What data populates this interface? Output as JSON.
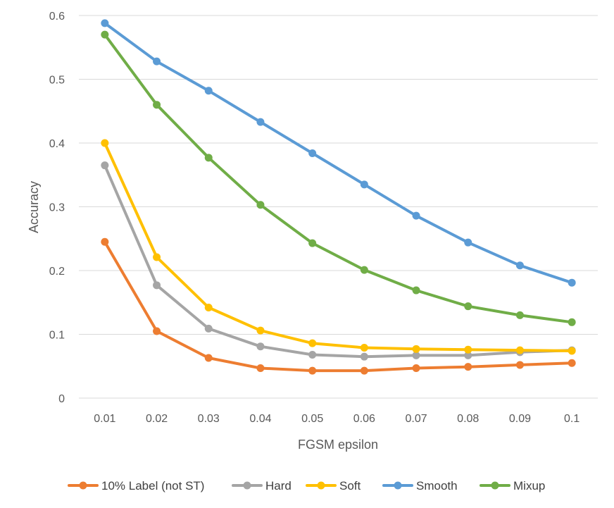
{
  "chart_data": {
    "type": "line",
    "xlabel": "FGSM epsilon",
    "ylabel": "Accuracy",
    "categories": [
      "0.01",
      "0.02",
      "0.03",
      "0.04",
      "0.05",
      "0.06",
      "0.07",
      "0.08",
      "0.09",
      "0.1"
    ],
    "ylim": [
      0,
      0.6
    ],
    "yticks": [
      0,
      0.1,
      0.2,
      0.3,
      0.4,
      0.5,
      0.6
    ],
    "ytick_labels": [
      "0",
      "0.1",
      "0.2",
      "0.3",
      "0.4",
      "0.5",
      "0.6"
    ],
    "grid": true,
    "legend_position": "bottom",
    "series": [
      {
        "name": "10% Label (not ST)",
        "color": "#ED7D31",
        "values": [
          0.245,
          0.105,
          0.063,
          0.047,
          0.043,
          0.043,
          0.047,
          0.049,
          0.052,
          0.055
        ]
      },
      {
        "name": "Hard",
        "color": "#A5A5A5",
        "values": [
          0.365,
          0.177,
          0.109,
          0.081,
          0.068,
          0.065,
          0.067,
          0.067,
          0.072,
          0.075
        ]
      },
      {
        "name": "Soft",
        "color": "#FFC000",
        "values": [
          0.4,
          0.221,
          0.142,
          0.106,
          0.086,
          0.079,
          0.077,
          0.076,
          0.075,
          0.074
        ]
      },
      {
        "name": "Smooth",
        "color": "#5B9BD5",
        "values": [
          0.588,
          0.528,
          0.482,
          0.433,
          0.384,
          0.335,
          0.286,
          0.244,
          0.208,
          0.181
        ]
      },
      {
        "name": "Mixup",
        "color": "#70AD47",
        "values": [
          0.57,
          0.46,
          0.377,
          0.303,
          0.243,
          0.201,
          0.169,
          0.144,
          0.13,
          0.119
        ]
      }
    ]
  }
}
